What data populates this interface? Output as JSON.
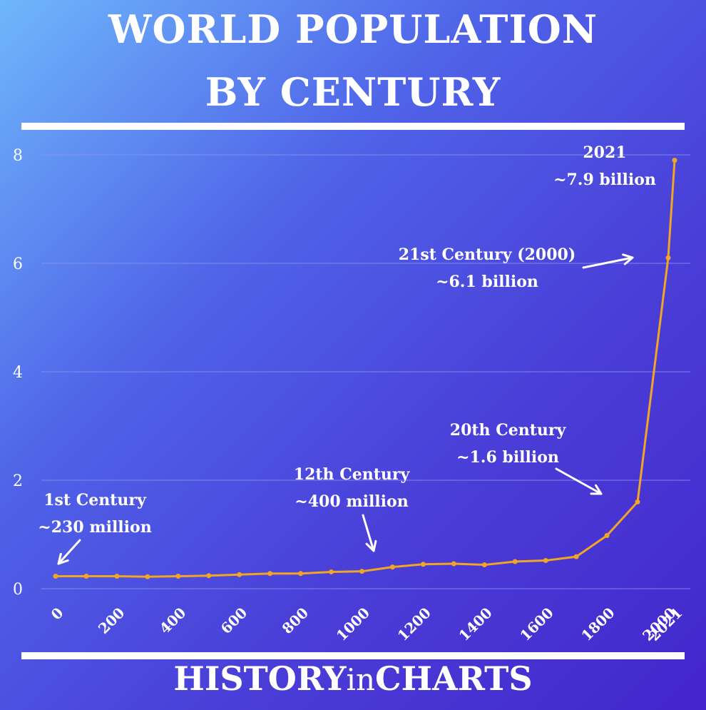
{
  "header": {
    "title_line1": "WORLD POPULATION",
    "title_line2": "BY CENTURY"
  },
  "footer": {
    "brand_part1": "HISTORY",
    "brand_part2": "in",
    "brand_part3": "CHARTS"
  },
  "colors": {
    "line": "#f0a524",
    "grid": "#8d95f2"
  },
  "chart_data": {
    "type": "line",
    "title": "WORLD POPULATION BY CENTURY",
    "xlabel": "",
    "ylabel": "",
    "ylim": [
      0,
      8
    ],
    "yticks": [
      0,
      2,
      4,
      6,
      8
    ],
    "xticks": [
      0,
      200,
      400,
      600,
      800,
      1000,
      1200,
      1400,
      1600,
      1800,
      2000,
      2021
    ],
    "grid": true,
    "x": [
      0,
      100,
      200,
      300,
      400,
      500,
      600,
      700,
      800,
      900,
      1000,
      1100,
      1200,
      1300,
      1400,
      1500,
      1600,
      1700,
      1800,
      1900,
      2000,
      2021
    ],
    "values": [
      0.23,
      0.23,
      0.23,
      0.22,
      0.23,
      0.24,
      0.26,
      0.28,
      0.28,
      0.31,
      0.32,
      0.4,
      0.45,
      0.46,
      0.44,
      0.5,
      0.52,
      0.59,
      0.98,
      1.6,
      6.1,
      7.9
    ],
    "annotations": [
      {
        "lines": [
          "1st Century",
          "~230 million"
        ]
      },
      {
        "lines": [
          "12th Century",
          "~400 million"
        ]
      },
      {
        "lines": [
          "20th Century",
          "~1.6 billion"
        ]
      },
      {
        "lines": [
          "21st Century (2000)",
          "~6.1 billion"
        ]
      },
      {
        "lines": [
          "2021",
          "~7.9 billion"
        ]
      }
    ]
  }
}
